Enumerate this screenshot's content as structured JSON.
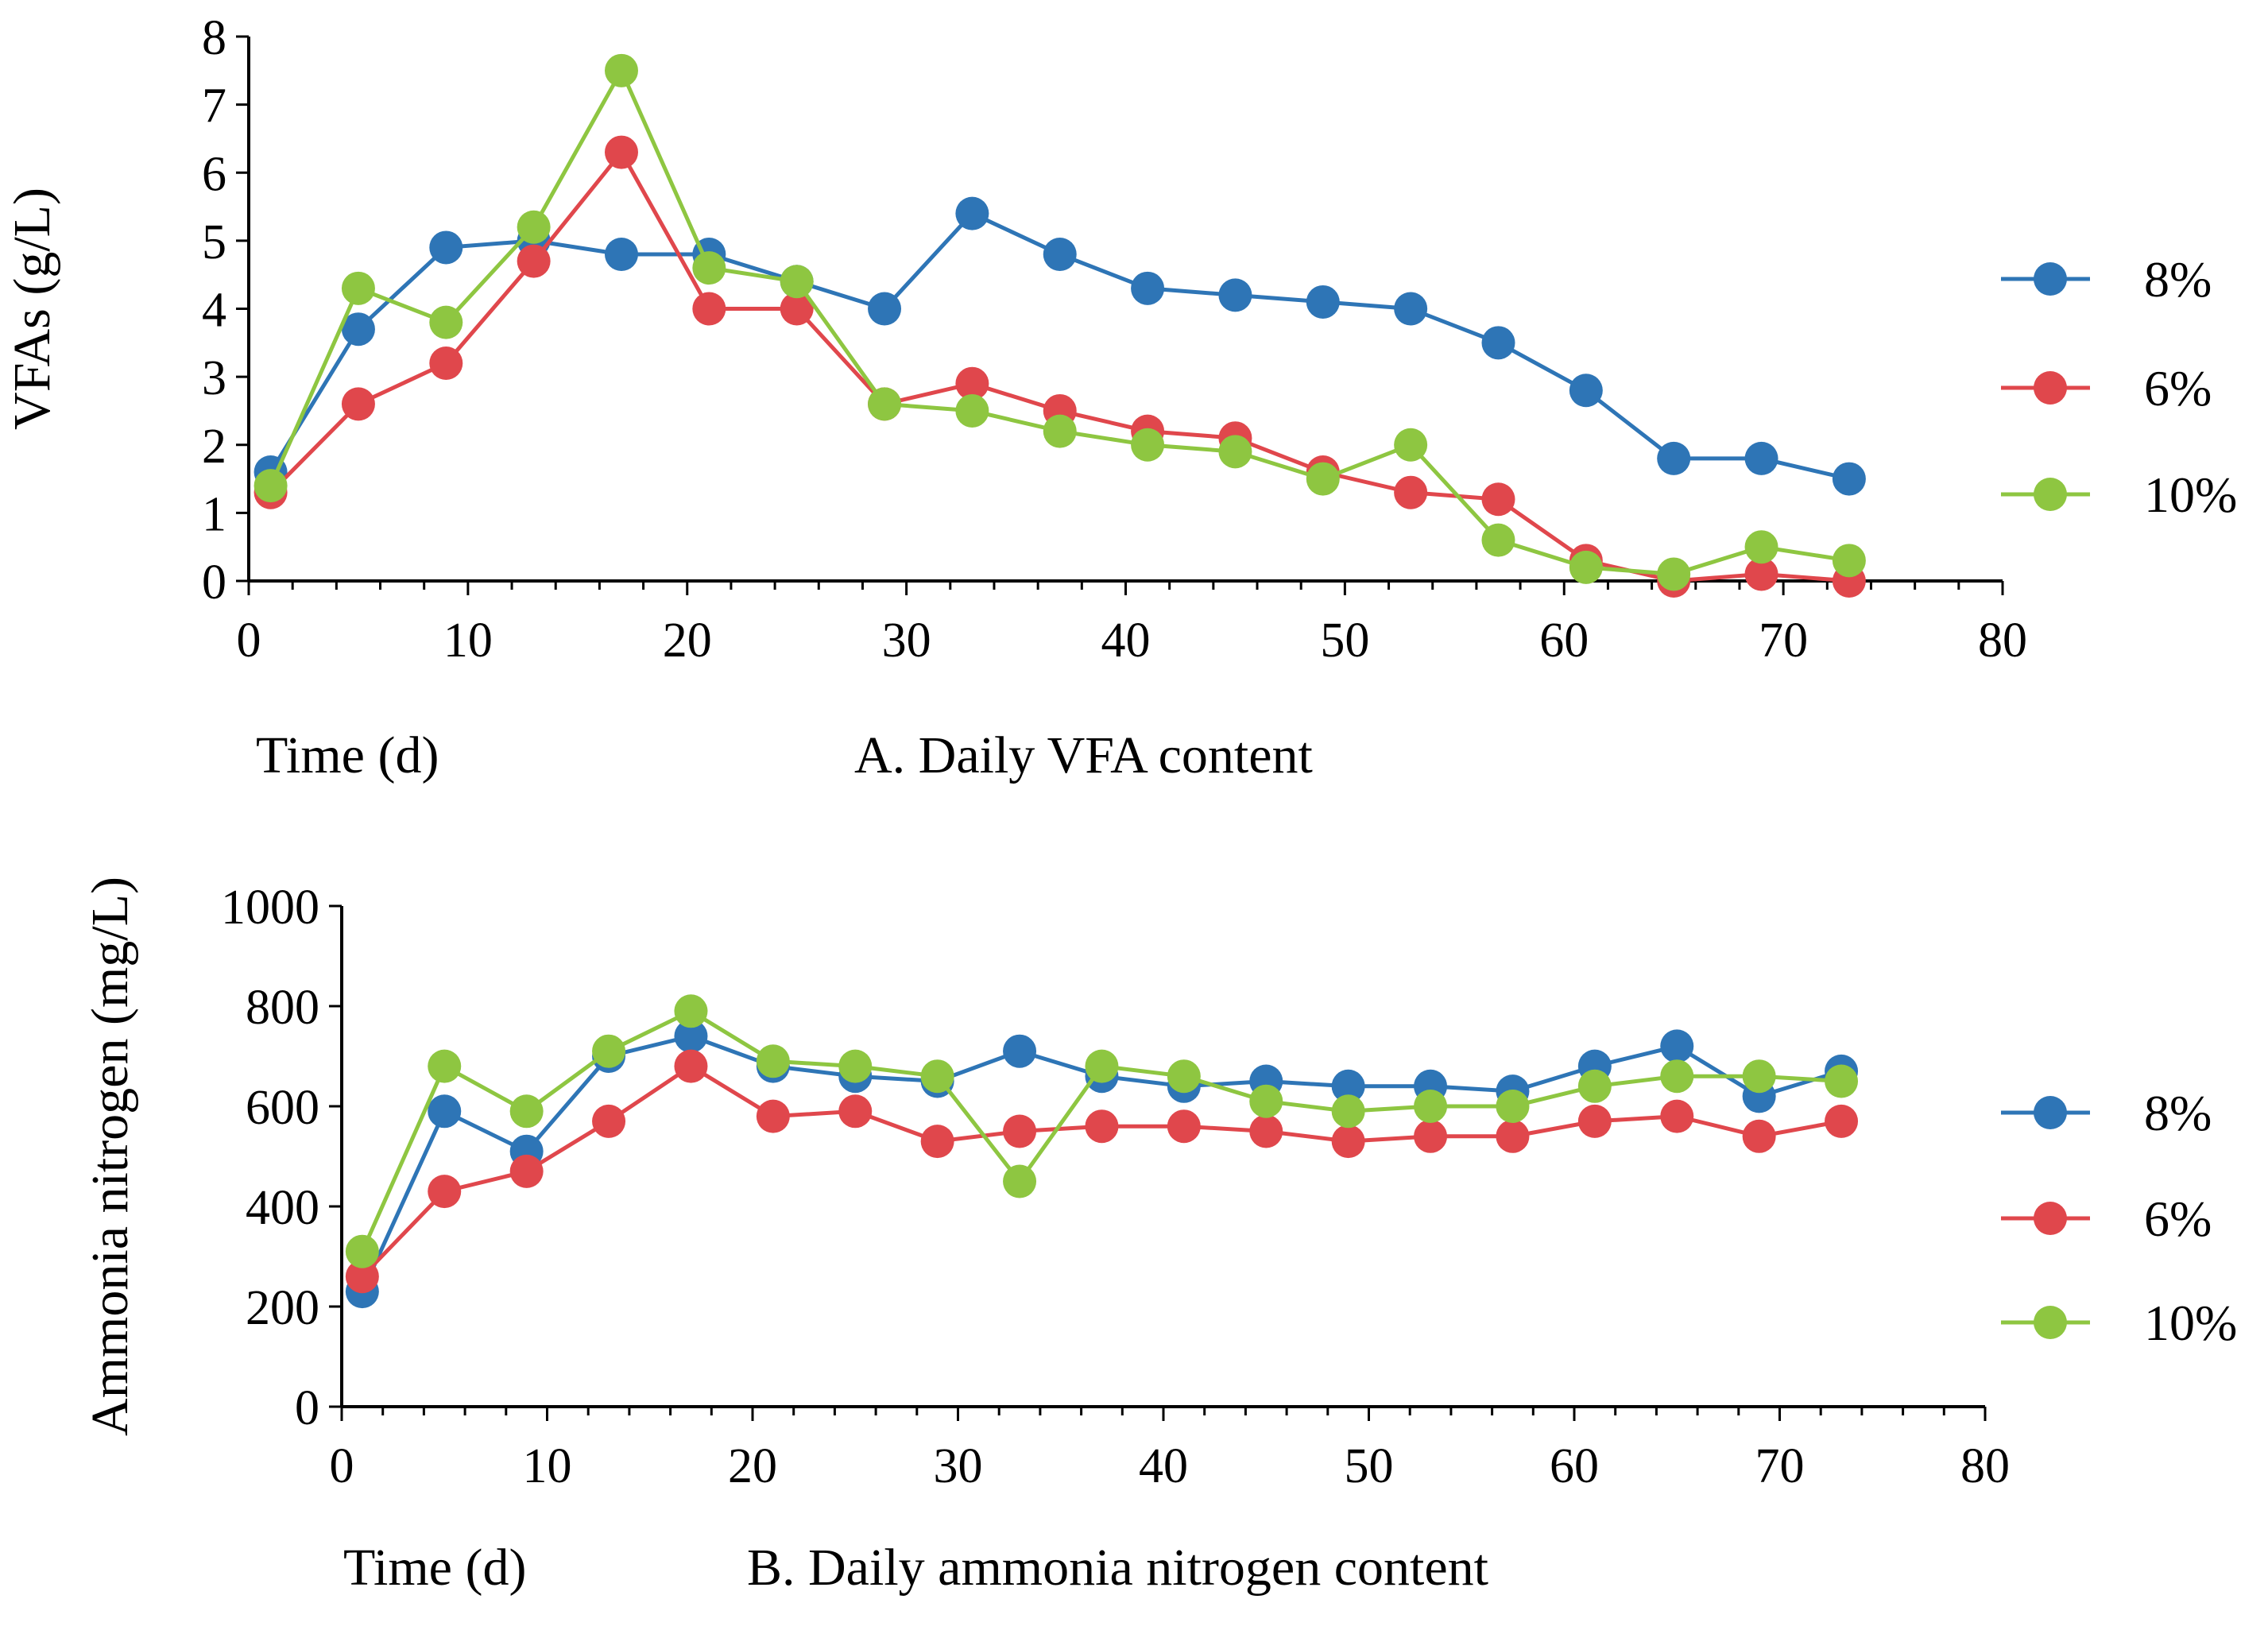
{
  "colors": {
    "8%": "#2e75b6",
    "6%": "#e0474c",
    "10%": "#8ec641"
  },
  "chart_data": [
    {
      "type": "line",
      "title": "A. Daily VFA content",
      "xlabel": "Time (d)",
      "ylabel": "VFAs (g/L)",
      "xlim": [
        0,
        80
      ],
      "ylim": [
        0,
        8
      ],
      "xticks": [
        0,
        10,
        20,
        30,
        40,
        50,
        60,
        70,
        80
      ],
      "yticks": [
        0,
        1,
        2,
        3,
        4,
        5,
        6,
        7,
        8
      ],
      "grid": false,
      "legend": "right",
      "x": [
        1,
        5,
        9,
        13,
        17,
        21,
        25,
        29,
        33,
        37,
        41,
        45,
        49,
        53,
        57,
        61,
        65,
        69,
        73
      ],
      "series": [
        {
          "name": "8%",
          "values": [
            1.6,
            3.7,
            4.9,
            5.0,
            4.8,
            4.8,
            4.4,
            4.0,
            5.4,
            4.8,
            4.3,
            4.2,
            4.1,
            4.0,
            3.5,
            2.8,
            1.8,
            1.8,
            1.5
          ]
        },
        {
          "name": "6%",
          "values": [
            1.3,
            2.6,
            3.2,
            4.7,
            6.3,
            4.0,
            4.0,
            2.6,
            2.9,
            2.5,
            2.2,
            2.1,
            1.6,
            1.3,
            1.2,
            0.3,
            0.0,
            0.1,
            0.0
          ]
        },
        {
          "name": "10%",
          "values": [
            1.4,
            4.3,
            3.8,
            5.2,
            7.5,
            4.6,
            4.4,
            2.6,
            2.5,
            2.2,
            2.0,
            1.9,
            1.5,
            2.0,
            0.6,
            0.2,
            0.1,
            0.5,
            0.3
          ]
        }
      ]
    },
    {
      "type": "line",
      "title": "B. Daily ammonia nitrogen content",
      "xlabel": "Time (d)",
      "ylabel": "Ammonia nitrogen (mg/L)",
      "xlim": [
        0,
        80
      ],
      "ylim": [
        0,
        1000
      ],
      "xticks": [
        0,
        10,
        20,
        30,
        40,
        50,
        60,
        70,
        80
      ],
      "yticks": [
        0,
        200,
        400,
        600,
        800,
        1000
      ],
      "grid": false,
      "legend": "right",
      "x": [
        1,
        5,
        9,
        13,
        17,
        21,
        25,
        29,
        33,
        37,
        41,
        45,
        49,
        53,
        57,
        61,
        65,
        69,
        73
      ],
      "series": [
        {
          "name": "8%",
          "values": [
            230,
            590,
            510,
            700,
            740,
            680,
            660,
            650,
            710,
            660,
            640,
            650,
            640,
            640,
            630,
            680,
            720,
            620,
            670
          ]
        },
        {
          "name": "6%",
          "values": [
            260,
            430,
            470,
            570,
            680,
            580,
            590,
            530,
            550,
            560,
            560,
            550,
            530,
            540,
            540,
            570,
            580,
            540,
            570
          ]
        },
        {
          "name": "10%",
          "values": [
            310,
            680,
            590,
            710,
            790,
            690,
            680,
            660,
            450,
            680,
            660,
            610,
            590,
            600,
            600,
            640,
            660,
            660,
            650
          ]
        }
      ]
    }
  ]
}
